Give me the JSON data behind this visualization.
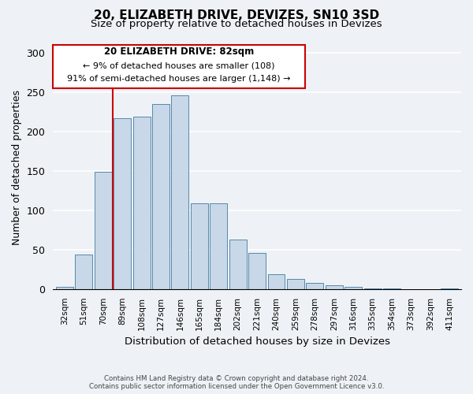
{
  "title": "20, ELIZABETH DRIVE, DEVIZES, SN10 3SD",
  "subtitle": "Size of property relative to detached houses in Devizes",
  "xlabel": "Distribution of detached houses by size in Devizes",
  "ylabel": "Number of detached properties",
  "bar_labels": [
    "32sqm",
    "51sqm",
    "70sqm",
    "89sqm",
    "108sqm",
    "127sqm",
    "146sqm",
    "165sqm",
    "184sqm",
    "202sqm",
    "221sqm",
    "240sqm",
    "259sqm",
    "278sqm",
    "297sqm",
    "316sqm",
    "335sqm",
    "354sqm",
    "373sqm",
    "392sqm",
    "411sqm"
  ],
  "bar_values": [
    3,
    44,
    149,
    217,
    219,
    235,
    246,
    109,
    109,
    63,
    46,
    19,
    13,
    8,
    5,
    3,
    1,
    1,
    0,
    0,
    1
  ],
  "bar_color": "#c8d8e8",
  "bar_edge_color": "#5588aa",
  "marker_line_color": "#cc0000",
  "annotation_box_facecolor": "#ffffff",
  "annotation_box_edgecolor": "#cc0000",
  "annotation_title": "20 ELIZABETH DRIVE: 82sqm",
  "annotation_line1": "← 9% of detached houses are smaller (108)",
  "annotation_line2": "91% of semi-detached houses are larger (1,148) →",
  "ylim": [
    0,
    310
  ],
  "yticks": [
    0,
    50,
    100,
    150,
    200,
    250,
    300
  ],
  "footer_line1": "Contains HM Land Registry data © Crown copyright and database right 2024.",
  "footer_line2": "Contains public sector information licensed under the Open Government Licence v3.0.",
  "bg_color": "#eef2f6"
}
